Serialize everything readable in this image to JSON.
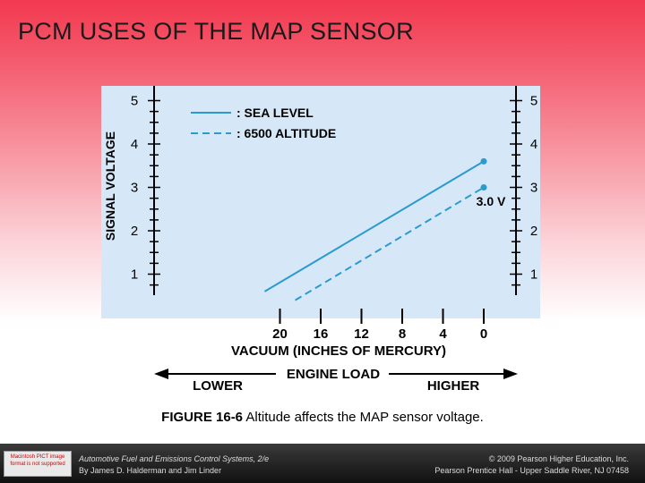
{
  "slide_title": "PCM USES OF THE MAP SENSOR",
  "colors": {
    "line": "#2b9ad0",
    "axis": "#000000",
    "panel": "#d6e8f7"
  },
  "chart_data": {
    "type": "line",
    "ylabel": "SIGNAL VOLTAGE",
    "xlabel": "VACUUM (INCHES OF MERCURY)",
    "x_ticks": [
      "20",
      "16",
      "12",
      "8",
      "4",
      "0"
    ],
    "y_ticks": [
      "5",
      "4",
      "3",
      "2",
      "1"
    ],
    "ylim": [
      0,
      5
    ],
    "x_reversed": true,
    "series": [
      {
        "name": ": SEA LEVEL",
        "style": "solid",
        "x": [
          21.5,
          0
        ],
        "y": [
          0.6,
          3.6
        ]
      },
      {
        "name": ": 6500 ALTITUDE",
        "style": "dashed",
        "x": [
          18.5,
          0
        ],
        "y": [
          0.4,
          3.0
        ]
      }
    ],
    "annotation": "3.0 V",
    "engine_load_label": "ENGINE LOAD",
    "engine_load_left": "LOWER",
    "engine_load_right": "HIGHER"
  },
  "caption": {
    "label": "FIGURE 16-6",
    "text": " Altitude affects the MAP sensor voltage."
  },
  "footer": {
    "badge_text": "Macintosh PICT image format is not supported",
    "left_line1": "Automotive Fuel and Emissions Control Systems, 2/e",
    "left_line2": "By James D. Halderman and Jim Linder",
    "right_line1": "© 2009 Pearson Higher Education, Inc.",
    "right_line2": "Pearson Prentice Hall - Upper Saddle River, NJ 07458"
  }
}
